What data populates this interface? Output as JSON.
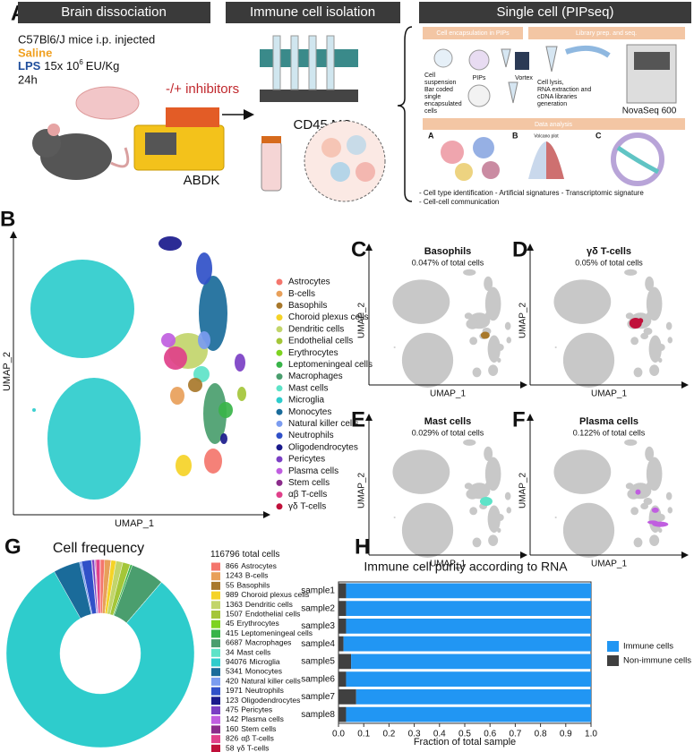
{
  "panel_a": {
    "letter": "A",
    "headers": [
      "Brain dissociation",
      "Immune cell isolation",
      "Single cell (PIPseq)"
    ],
    "mice": "C57Bl6/J mice i.p. injected",
    "saline": "Saline",
    "lps": "LPS",
    "lps_dose": "15x 10",
    "lps_exp": "6",
    "lps_unit": "EU/Kg",
    "time": "24h",
    "inhibitors": "-/+ inhibitors",
    "abdk": "ABDK",
    "cd45": "CD45 MS",
    "encapsulation": "Cell encapsulation in PIPs",
    "library": "Library prep. and seq.",
    "cell_suspension": [
      "Cell",
      "suspension"
    ],
    "pips": "PIPs",
    "vortex": "Vortex",
    "barcoded": [
      "Bar coded",
      "single",
      "encapsulated",
      "cells"
    ],
    "lysis": [
      "Cell lysis,",
      "RNA extraction and",
      "cDNA libraries",
      "generation"
    ],
    "novaseq": "NovaSeq 600",
    "data_analysis": "Data analysis",
    "sub_letters": [
      "A",
      "B",
      "C"
    ],
    "volcano": "Volcano plot",
    "outputs": [
      "- Cell type identification - Artificial signatures - Transcriptomic signature",
      "- Cell-cell communication"
    ]
  },
  "panel_b": {
    "letter": "B",
    "x_label": "UMAP_1",
    "y_label": "UMAP_2",
    "legend": [
      {
        "name": "Astrocytes",
        "color": "#f4766d"
      },
      {
        "name": "B-cells",
        "color": "#e8a05a"
      },
      {
        "name": "Basophils",
        "color": "#a8782b"
      },
      {
        "name": "Choroid plexus cells",
        "color": "#f5d327"
      },
      {
        "name": "Dendritic cells",
        "color": "#c2d56b"
      },
      {
        "name": "Endothelial cells",
        "color": "#a4c639"
      },
      {
        "name": "Erythrocytes",
        "color": "#7ed321"
      },
      {
        "name": "Leptomeningeal cells",
        "color": "#38b449"
      },
      {
        "name": "Macrophages",
        "color": "#4a9e6e"
      },
      {
        "name": "Mast cells",
        "color": "#5de3c8"
      },
      {
        "name": "Microglia",
        "color": "#2ecccc"
      },
      {
        "name": "Monocytes",
        "color": "#1a6b9a"
      },
      {
        "name": "Natural killer cells",
        "color": "#7b9cf0"
      },
      {
        "name": "Neutrophils",
        "color": "#3050c8"
      },
      {
        "name": "Oligodendrocytes",
        "color": "#1a1a8c"
      },
      {
        "name": "Pericytes",
        "color": "#7b3fc4"
      },
      {
        "name": "Plasma cells",
        "color": "#c05ee0"
      },
      {
        "name": "Stem cells",
        "color": "#8b2c8b"
      },
      {
        "name": "αβ T-cells",
        "color": "#e0408a"
      },
      {
        "name": "γδ T-cells",
        "color": "#c0103a"
      }
    ]
  },
  "subsets": [
    {
      "letter": "C",
      "title": "Basophils",
      "subtitle": "0.047% of total cells",
      "x_label": "UMAP_1",
      "y_label": "UMAP_2",
      "color": "#a8782b"
    },
    {
      "letter": "D",
      "title": "γδ T-cells",
      "subtitle": "0.05% of total cells",
      "x_label": "UMAP_1",
      "y_label": "UMAP_2",
      "color": "#c0103a"
    },
    {
      "letter": "E",
      "title": "Mast cells",
      "subtitle": "0.029% of total cells",
      "x_label": "UMAP_1",
      "y_label": "UMAP_2",
      "color": "#5de3c8"
    },
    {
      "letter": "F",
      "title": "Plasma cells",
      "subtitle": "0.122% of total cells",
      "x_label": "UMAP_1",
      "y_label": "UMAP_2",
      "color": "#c05ee0"
    }
  ],
  "chart_data": [
    {
      "type": "pie",
      "donut": true,
      "panel_letter": "G",
      "title": "Cell frequency",
      "total_cells": 116796,
      "total_label": "total cells",
      "categories": [
        "Astrocytes",
        "B-cells",
        "Basophils",
        "Choroid plexus cells",
        "Dendritic cells",
        "Endothelial cells",
        "Erythrocytes",
        "Leptomeningeal cells",
        "Macrophages",
        "Mast cells",
        "Microglia",
        "Monocytes",
        "Natural killer cells",
        "Neutrophils",
        "Oligodendrocytes",
        "Pericytes",
        "Plasma cells",
        "Stem cells",
        "αβ T-cells",
        "γδ T-cells"
      ],
      "values": [
        866,
        1243,
        55,
        989,
        1363,
        1507,
        45,
        415,
        6687,
        34,
        94076,
        5341,
        420,
        1971,
        123,
        475,
        142,
        160,
        826,
        58
      ],
      "colors": [
        "#f4766d",
        "#e8a05a",
        "#a8782b",
        "#f5d327",
        "#c2d56b",
        "#a4c639",
        "#7ed321",
        "#38b449",
        "#4a9e6e",
        "#5de3c8",
        "#2ecccc",
        "#1a6b9a",
        "#7b9cf0",
        "#3050c8",
        "#1a1a8c",
        "#7b3fc4",
        "#c05ee0",
        "#8b2c8b",
        "#e0408a",
        "#c0103a"
      ]
    },
    {
      "type": "bar",
      "orientation": "horizontal",
      "stacked": true,
      "panel_letter": "H",
      "title": "Immune cell purity according to RNA",
      "x_label": "Fraction of total sample",
      "categories": [
        "sample1",
        "sample2",
        "sample3",
        "sample4",
        "sample5",
        "sample6",
        "sample7",
        "sample8"
      ],
      "series": [
        {
          "name": "Immune cells",
          "color": "#2196f3",
          "values": [
            0.97,
            0.97,
            0.97,
            0.98,
            0.95,
            0.97,
            0.93,
            0.97
          ]
        },
        {
          "name": "Non-immune cells",
          "color": "#404040",
          "values": [
            0.03,
            0.03,
            0.03,
            0.02,
            0.05,
            0.03,
            0.07,
            0.03
          ]
        }
      ],
      "xlim": [
        0,
        1
      ],
      "xticks": [
        {
          "value": 0,
          "label": "0.0"
        },
        0.1,
        0.2,
        0.3,
        0.4,
        0.5,
        0.6,
        0.7,
        0.8,
        0.9,
        {
          "value": 1,
          "label": "1.0"
        }
      ]
    }
  ]
}
